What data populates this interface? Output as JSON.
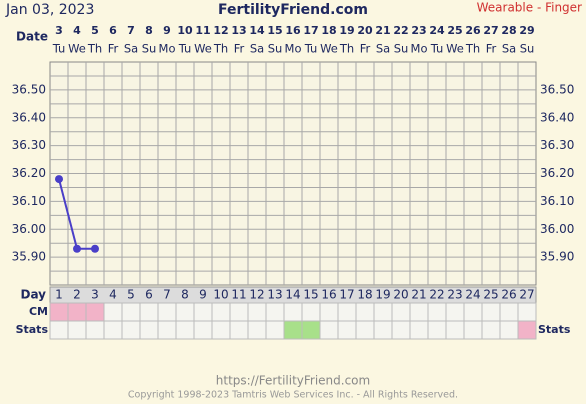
{
  "header": {
    "date": "Jan 03, 2023",
    "site": "FertilityFriend.com",
    "method": "Wearable - Finger"
  },
  "chart_data": {
    "type": "line",
    "row_labels": {
      "date": "Date",
      "day": "Day",
      "cm": "CM",
      "stats": "Stats"
    },
    "categories": [
      "3",
      "4",
      "5",
      "6",
      "7",
      "8",
      "9",
      "10",
      "11",
      "12",
      "13",
      "14",
      "15",
      "16",
      "17",
      "18",
      "19",
      "20",
      "21",
      "22",
      "23",
      "24",
      "25",
      "26",
      "27",
      "28",
      "29"
    ],
    "weekdays": [
      "Tu",
      "We",
      "Th",
      "Fr",
      "Sa",
      "Su",
      "Mo",
      "Tu",
      "We",
      "Th",
      "Fr",
      "Sa",
      "Su",
      "Mo",
      "Tu",
      "We",
      "Th",
      "Fr",
      "Sa",
      "Su",
      "Mo",
      "Tu",
      "We",
      "Th",
      "Fr",
      "Sa",
      "Su"
    ],
    "cycle_days": [
      1,
      2,
      3,
      4,
      5,
      6,
      7,
      8,
      9,
      10,
      11,
      12,
      13,
      14,
      15,
      16,
      17,
      18,
      19,
      20,
      21,
      22,
      23,
      24,
      25,
      26,
      27
    ],
    "series": [
      {
        "name": "Temperature",
        "color": "#4a3fc8",
        "values": [
          36.18,
          35.93,
          35.93,
          null,
          null,
          null,
          null,
          null,
          null,
          null,
          null,
          null,
          null,
          null,
          null,
          null,
          null,
          null,
          null,
          null,
          null,
          null,
          null,
          null,
          null,
          null,
          null
        ]
      }
    ],
    "cm_colors": [
      "#f2b3c8",
      "#f2b3c8",
      "#f2b3c8",
      null,
      null,
      null,
      null,
      null,
      null,
      null,
      null,
      null,
      null,
      null,
      null,
      null,
      null,
      null,
      null,
      null,
      null,
      null,
      null,
      null,
      null,
      null,
      null
    ],
    "stats_colors": [
      null,
      null,
      null,
      null,
      null,
      null,
      null,
      null,
      null,
      null,
      null,
      null,
      null,
      "#a8e08a",
      "#a8e08a",
      null,
      null,
      null,
      null,
      null,
      null,
      null,
      null,
      null,
      null,
      null,
      "#f2b3c8"
    ],
    "ylim": [
      35.8,
      36.6
    ],
    "yticks": [
      {
        "value": 35.9,
        "label": "35.90"
      },
      {
        "value": 36.0,
        "label": "36.00"
      },
      {
        "value": 36.1,
        "label": "36.10"
      },
      {
        "value": 36.2,
        "label": "36.20"
      },
      {
        "value": 36.3,
        "label": "36.30"
      },
      {
        "value": 36.4,
        "label": "36.40"
      },
      {
        "value": 36.5,
        "label": "36.50"
      }
    ],
    "grid": true
  },
  "footer": {
    "url": "https://FertilityFriend.com",
    "copyright": "Copyright 1998-2023 Tamtris Web Services Inc. - All Rights Reserved."
  }
}
